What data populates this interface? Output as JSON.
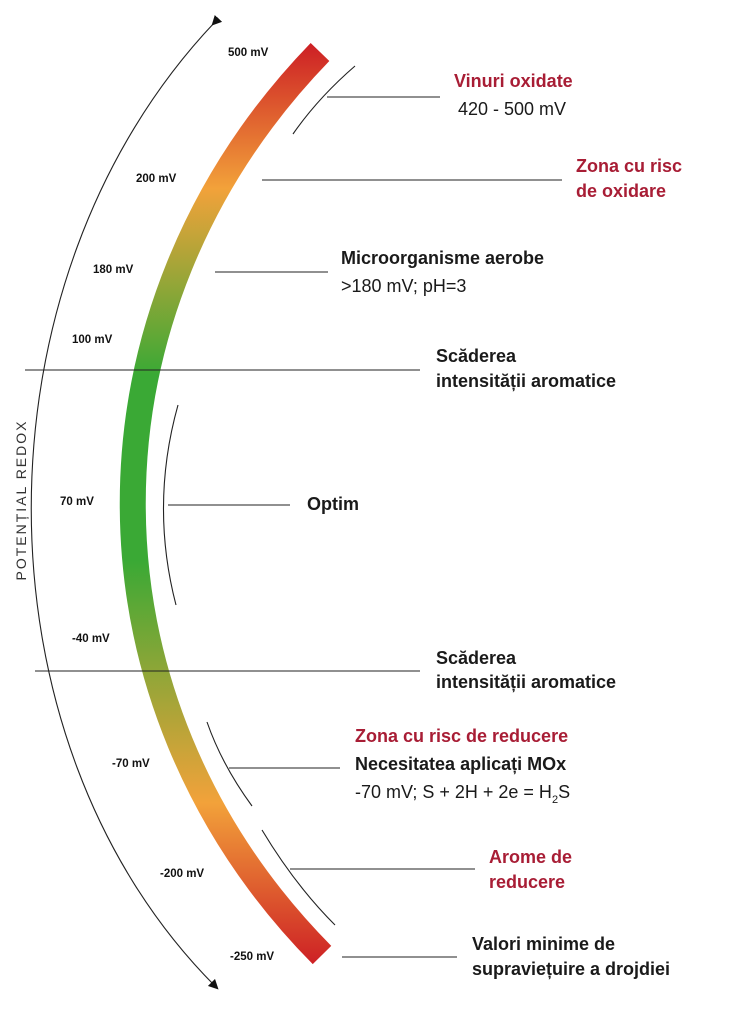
{
  "axis_title": "POTENȚIAL REDOX",
  "colors": {
    "danger": "#a81d35",
    "text": "#1a1a1a",
    "gradient_red": "#cc1c24",
    "gradient_orange": "#f2a23a",
    "gradient_green": "#3aa935"
  },
  "scale_labels": {
    "v500": "500 mV",
    "v200": "200 mV",
    "v180": "180 mV",
    "v100": "100 mV",
    "v70": "70 mV",
    "vm40": "-40 mV",
    "vm70": "-70 mV",
    "vm200": "-200 mV",
    "vm250": "-250 mV"
  },
  "annotations": {
    "oxidized_wines": {
      "title": "Vinuri oxidate",
      "range": "420 - 500 mV"
    },
    "oxidation_risk": {
      "line1": "Zona cu risc",
      "line2": "de oxidare"
    },
    "aerobic": {
      "title": "Microorganisme aerobe",
      "detail": ">180 mV; pH=3"
    },
    "aroma_drop_top": {
      "line1": "Scăderea",
      "line2": "intensității aromatice"
    },
    "optimum": {
      "label": "Optim"
    },
    "aroma_drop_bottom": {
      "line1": "Scăderea",
      "line2": "intensității aromatice"
    },
    "reduction_risk": {
      "title": "Zona cu risc de reducere",
      "need": "Necesitatea aplicați MOx",
      "formula_main": "-70 mV; S + 2H + 2e = H",
      "formula_sub": "2",
      "formula_end": "S"
    },
    "reduction_aromas": {
      "line1": "Arome de",
      "line2": "reducere"
    },
    "yeast_min": {
      "line1": "Valori minime de",
      "line2": "supraviețuire a drojdiei"
    }
  }
}
